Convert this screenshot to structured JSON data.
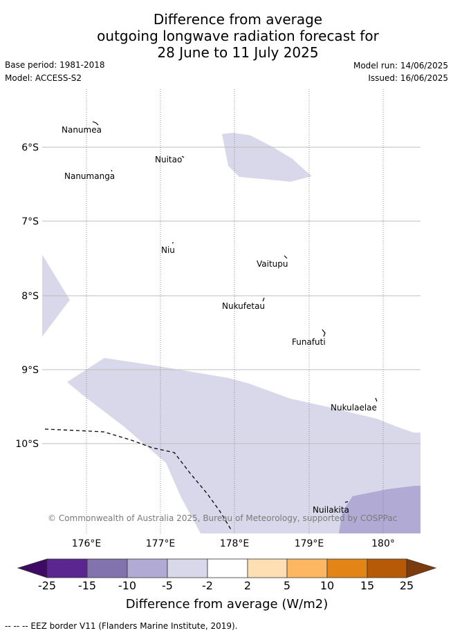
{
  "title": {
    "line1": "Difference from average",
    "line2": "outgoing longwave radiation forecast for",
    "line3": "28 June to 11 July 2025"
  },
  "meta": {
    "base_period": "Base period: 1981-2018",
    "model": "Model: ACCESS-S2",
    "model_run": "Model run: 14/06/2025",
    "issued": "Issued: 16/06/2025"
  },
  "map": {
    "lat_labels": [
      "6°S",
      "7°S",
      "8°S",
      "9°S",
      "10°S"
    ],
    "lon_labels": [
      "176°E",
      "177°E",
      "178°E",
      "179°E",
      "180°"
    ],
    "places": [
      "Nanumea",
      "Nuitao",
      "Nanumanga",
      "Niu",
      "Vaitupu",
      "Nukufetau",
      "Funafuti",
      "Nukulaelae",
      "Nuilakita"
    ],
    "copyright": "© Commonwealth of Australia 2025, Bureau of Meteorology, supported by COSPPac",
    "colors": {
      "neg2_5": "#d8d8ea",
      "neg5_10": "#b1aad4",
      "grid": "#b8b8b8",
      "eez": "#000000"
    }
  },
  "colorbar": {
    "ticks": [
      "-25",
      "-15",
      "-10",
      "-5",
      "-2",
      "2",
      "5",
      "10",
      "15",
      "25"
    ],
    "colors": [
      "#3e0a66",
      "#5b2690",
      "#8273ae",
      "#b1aad4",
      "#d8d8ea",
      "#ffffff",
      "#fedfb4",
      "#fdb763",
      "#e38417",
      "#b65a08",
      "#7c3b0c"
    ],
    "label": "Difference from average (W/m2)"
  },
  "footnote": "-- -- -- EEZ border V11 (Flanders Marine Institute, 2019)."
}
